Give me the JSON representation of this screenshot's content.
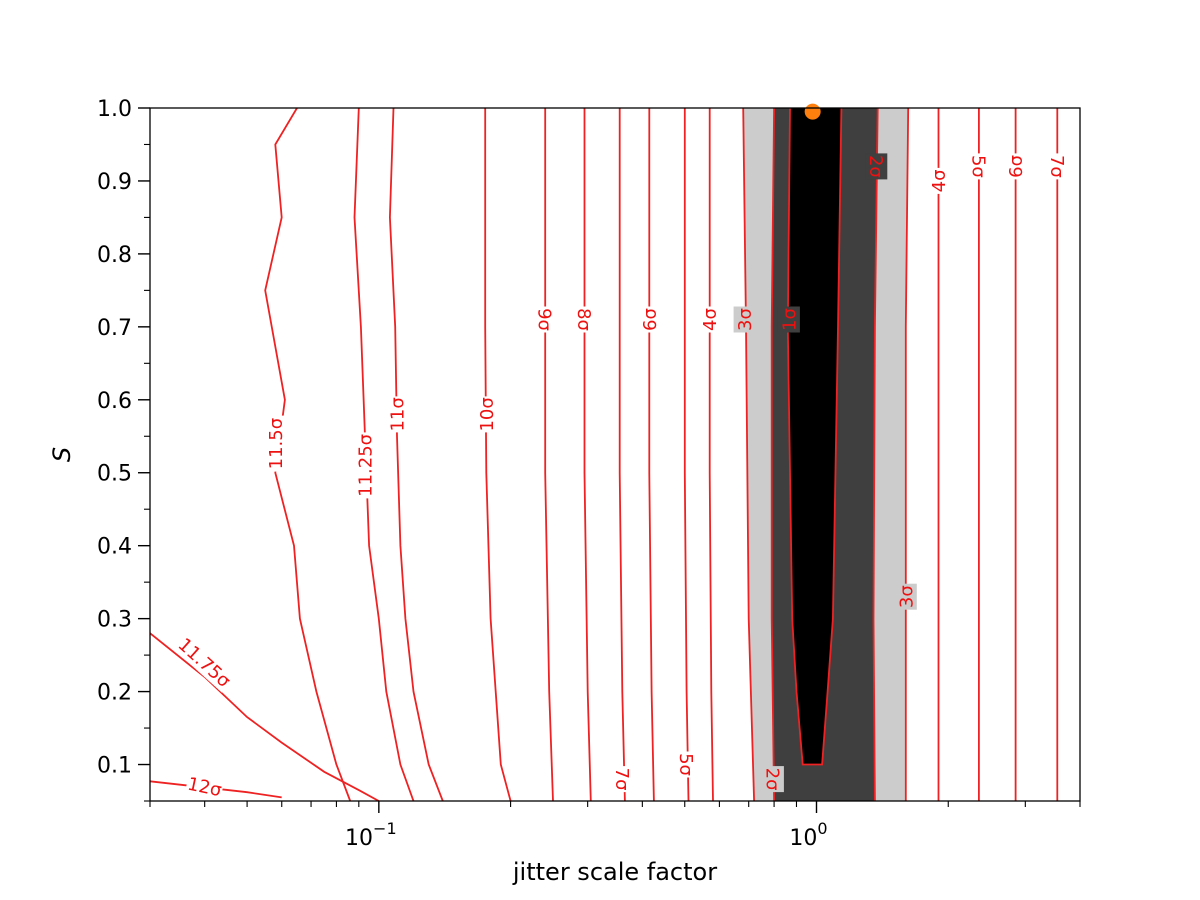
{
  "chart_data": {
    "type": "contour",
    "xlabel": "jitter scale factor",
    "ylabel": "S",
    "x_scale": "log",
    "xlim": [
      0.03,
      4.0
    ],
    "ylim": [
      0.05,
      1.0
    ],
    "x_major_ticks": [
      {
        "value": 0.1,
        "base": "10",
        "exp": "−1"
      },
      {
        "value": 1.0,
        "base": "10",
        "exp": "0"
      }
    ],
    "x_minor_ticks": [
      0.03,
      0.04,
      0.05,
      0.06,
      0.07,
      0.08,
      0.09,
      0.2,
      0.3,
      0.4,
      0.5,
      0.6,
      0.7,
      0.8,
      0.9,
      2,
      3,
      4
    ],
    "y_ticks": [
      {
        "value": 0.1,
        "label": "0.1"
      },
      {
        "value": 0.2,
        "label": "0.2"
      },
      {
        "value": 0.3,
        "label": "0.3"
      },
      {
        "value": 0.4,
        "label": "0.4"
      },
      {
        "value": 0.5,
        "label": "0.5"
      },
      {
        "value": 0.6,
        "label": "0.6"
      },
      {
        "value": 0.7,
        "label": "0.7"
      },
      {
        "value": 0.8,
        "label": "0.8"
      },
      {
        "value": 0.9,
        "label": "0.9"
      },
      {
        "value": 1.0,
        "label": "1.0"
      }
    ],
    "y_minor_ticks": [
      0.05,
      0.15,
      0.25,
      0.35,
      0.45,
      0.55,
      0.65,
      0.75,
      0.85,
      0.95
    ],
    "best_fit_point": {
      "x": 0.98,
      "y": 0.995,
      "color": "#ff7f0e"
    },
    "filled_regions": [
      {
        "level": "3σ",
        "color": "#cccccc",
        "left": [
          [
            0.68,
            1.0
          ],
          [
            0.69,
            0.7
          ],
          [
            0.7,
            0.3
          ],
          [
            0.72,
            0.05
          ]
        ],
        "right": [
          [
            1.62,
            1.0
          ],
          [
            1.6,
            0.7
          ],
          [
            1.6,
            0.3
          ],
          [
            1.6,
            0.05
          ]
        ]
      },
      {
        "level": "2σ",
        "color": "#3f3f3f",
        "left": [
          [
            0.8,
            1.0
          ],
          [
            0.79,
            0.7
          ],
          [
            0.79,
            0.3
          ],
          [
            0.8,
            0.05
          ]
        ],
        "right": [
          [
            1.38,
            1.0
          ],
          [
            1.36,
            0.7
          ],
          [
            1.35,
            0.3
          ],
          [
            1.36,
            0.05
          ]
        ]
      },
      {
        "level": "1σ",
        "color": "#000000",
        "left": [
          [
            0.87,
            1.0
          ],
          [
            0.86,
            0.7
          ],
          [
            0.88,
            0.3
          ],
          [
            0.9,
            0.2
          ],
          [
            0.93,
            0.1
          ]
        ],
        "right": [
          [
            1.14,
            1.0
          ],
          [
            1.12,
            0.7
          ],
          [
            1.09,
            0.3
          ],
          [
            1.06,
            0.2
          ],
          [
            1.03,
            0.1
          ]
        ]
      }
    ],
    "contour_lines": [
      {
        "label": "12σ",
        "points": [
          [
            0.03,
            0.077
          ],
          [
            0.05,
            0.062
          ],
          [
            0.06,
            0.055
          ]
        ],
        "label_at": [
          0.04,
          0.07
        ],
        "label_rot": 12
      },
      {
        "label": "11.75σ",
        "points": [
          [
            0.03,
            0.28
          ],
          [
            0.04,
            0.22
          ],
          [
            0.05,
            0.165
          ],
          [
            0.06,
            0.13
          ],
          [
            0.075,
            0.09
          ],
          [
            0.09,
            0.065
          ],
          [
            0.1,
            0.05
          ]
        ],
        "label_at": [
          0.04,
          0.24
        ],
        "label_rot": 42
      },
      {
        "label": "11.5σ",
        "points": [
          [
            0.065,
            1.0
          ],
          [
            0.058,
            0.95
          ],
          [
            0.06,
            0.85
          ],
          [
            0.055,
            0.75
          ],
          [
            0.061,
            0.6
          ],
          [
            0.058,
            0.5
          ],
          [
            0.064,
            0.4
          ],
          [
            0.066,
            0.3
          ],
          [
            0.072,
            0.2
          ],
          [
            0.08,
            0.1
          ],
          [
            0.086,
            0.05
          ]
        ],
        "label_at": [
          0.058,
          0.54
        ],
        "label_rot": -90
      },
      {
        "label": "11.25σ",
        "points": [
          [
            0.09,
            1.0
          ],
          [
            0.088,
            0.85
          ],
          [
            0.091,
            0.7
          ],
          [
            0.093,
            0.55
          ],
          [
            0.095,
            0.4
          ],
          [
            0.1,
            0.3
          ],
          [
            0.104,
            0.2
          ],
          [
            0.112,
            0.1
          ],
          [
            0.12,
            0.05
          ]
        ],
        "label_at": [
          0.093,
          0.51
        ],
        "label_rot": -90
      },
      {
        "label": "11σ",
        "points": [
          [
            0.108,
            1.0
          ],
          [
            0.106,
            0.85
          ],
          [
            0.109,
            0.7
          ],
          [
            0.11,
            0.55
          ],
          [
            0.112,
            0.4
          ],
          [
            0.115,
            0.3
          ],
          [
            0.12,
            0.2
          ],
          [
            0.13,
            0.1
          ],
          [
            0.14,
            0.05
          ]
        ],
        "label_at": [
          0.11,
          0.58
        ],
        "label_rot": -90
      },
      {
        "label": "10σ",
        "points": [
          [
            0.175,
            1.0
          ],
          [
            0.175,
            0.7
          ],
          [
            0.176,
            0.5
          ],
          [
            0.18,
            0.3
          ],
          [
            0.19,
            0.1
          ],
          [
            0.2,
            0.05
          ]
        ],
        "label_at": [
          0.176,
          0.58
        ],
        "label_rot": -90
      },
      {
        "label": "9σ",
        "points": [
          [
            0.24,
            1.0
          ],
          [
            0.24,
            0.5
          ],
          [
            0.245,
            0.2
          ],
          [
            0.25,
            0.05
          ]
        ],
        "label_at": [
          0.24,
          0.71
        ],
        "label_rot": 90
      },
      {
        "label": "8σ",
        "points": [
          [
            0.295,
            1.0
          ],
          [
            0.295,
            0.5
          ],
          [
            0.3,
            0.2
          ],
          [
            0.305,
            0.05
          ]
        ],
        "label_at": [
          0.295,
          0.71
        ],
        "label_rot": 90
      },
      {
        "label": "7σ",
        "points": [
          [
            0.355,
            1.0
          ],
          [
            0.355,
            0.5
          ],
          [
            0.36,
            0.2
          ],
          [
            0.365,
            0.05
          ]
        ],
        "label_at": [
          0.36,
          0.08
        ],
        "label_rot": 90
      },
      {
        "label": "6σ",
        "points": [
          [
            0.415,
            1.0
          ],
          [
            0.415,
            0.5
          ],
          [
            0.42,
            0.2
          ],
          [
            0.425,
            0.05
          ]
        ],
        "label_at": [
          0.415,
          0.71
        ],
        "label_rot": -90
      },
      {
        "label": "5σ",
        "points": [
          [
            0.5,
            1.0
          ],
          [
            0.5,
            0.5
          ],
          [
            0.505,
            0.2
          ],
          [
            0.51,
            0.05
          ]
        ],
        "label_at": [
          0.505,
          0.1
        ],
        "label_rot": 90
      },
      {
        "label": "4σ",
        "points": [
          [
            0.57,
            1.0
          ],
          [
            0.57,
            0.5
          ],
          [
            0.575,
            0.2
          ],
          [
            0.58,
            0.05
          ]
        ],
        "label_at": [
          0.57,
          0.71
        ],
        "label_rot": -90
      },
      {
        "label": "3σ",
        "points": [
          [
            0.68,
            1.0
          ],
          [
            0.69,
            0.7
          ],
          [
            0.7,
            0.3
          ],
          [
            0.72,
            0.05
          ]
        ],
        "label_at": [
          0.685,
          0.71
        ],
        "label_rot": -90
      },
      {
        "label": "2σ",
        "points": [
          [
            0.8,
            1.0
          ],
          [
            0.79,
            0.7
          ],
          [
            0.79,
            0.3
          ],
          [
            0.8,
            0.05
          ]
        ],
        "label_at": [
          0.795,
          0.08
        ],
        "label_rot": 90
      },
      {
        "label": "1σ",
        "points": [
          [
            0.87,
            1.0
          ],
          [
            0.86,
            0.7
          ],
          [
            0.88,
            0.3
          ],
          [
            0.9,
            0.2
          ],
          [
            0.93,
            0.1
          ],
          [
            1.03,
            0.1
          ],
          [
            1.06,
            0.2
          ],
          [
            1.09,
            0.3
          ],
          [
            1.12,
            0.7
          ],
          [
            1.14,
            1.0
          ]
        ],
        "label_at": [
          0.865,
          0.71
        ],
        "label_rot": -90
      },
      {
        "label": "2σ",
        "points": [
          [
            1.38,
            1.0
          ],
          [
            1.36,
            0.7
          ],
          [
            1.35,
            0.3
          ],
          [
            1.36,
            0.05
          ]
        ],
        "label_at": [
          1.37,
          0.92
        ],
        "label_rot": 90
      },
      {
        "label": "3σ",
        "points": [
          [
            1.62,
            1.0
          ],
          [
            1.6,
            0.7
          ],
          [
            1.6,
            0.3
          ],
          [
            1.6,
            0.05
          ]
        ],
        "label_at": [
          1.6,
          0.33
        ],
        "label_rot": -90
      },
      {
        "label": "4σ",
        "points": [
          [
            1.9,
            1.0
          ],
          [
            1.9,
            0.5
          ],
          [
            1.9,
            0.05
          ]
        ],
        "label_at": [
          1.9,
          0.9
        ],
        "label_rot": -90
      },
      {
        "label": "5σ",
        "points": [
          [
            2.35,
            1.0
          ],
          [
            2.35,
            0.5
          ],
          [
            2.35,
            0.05
          ]
        ],
        "label_at": [
          2.35,
          0.92
        ],
        "label_rot": 90
      },
      {
        "label": "6σ",
        "points": [
          [
            2.85,
            1.0
          ],
          [
            2.85,
            0.5
          ],
          [
            2.85,
            0.05
          ]
        ],
        "label_at": [
          2.85,
          0.92
        ],
        "label_rot": -90
      },
      {
        "label": "7σ",
        "points": [
          [
            3.55,
            1.0
          ],
          [
            3.55,
            0.5
          ],
          [
            3.55,
            0.05
          ]
        ],
        "label_at": [
          3.55,
          0.92
        ],
        "label_rot": 90
      }
    ],
    "colors": {
      "contour": "#ee2222",
      "axis": "#000000"
    }
  }
}
